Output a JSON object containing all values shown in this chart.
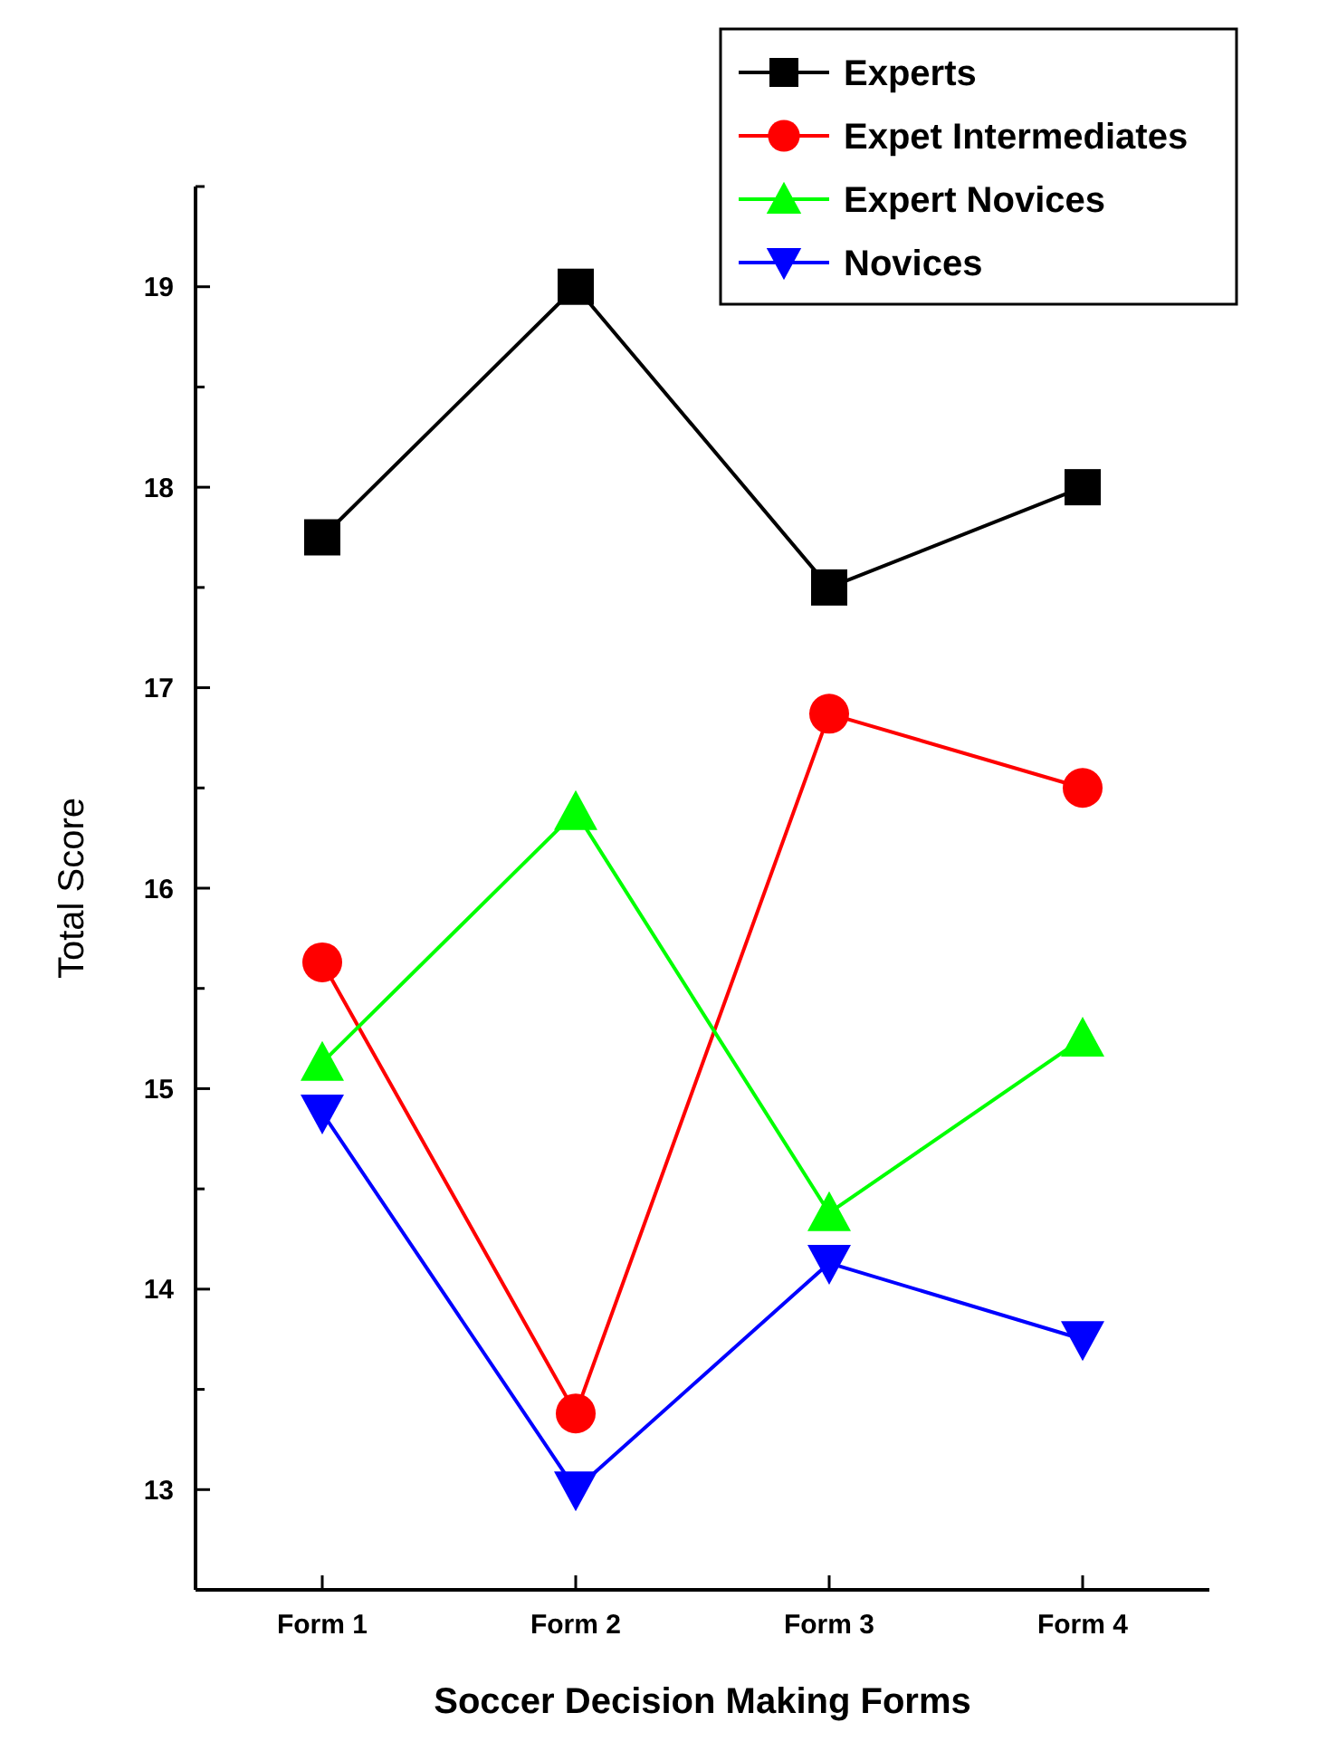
{
  "chart_data": {
    "type": "line",
    "xlabel": "Soccer Decision Making Forms",
    "ylabel": "Total Score",
    "categories": [
      "Form 1",
      "Form 2",
      "Form 3",
      "Form 4"
    ],
    "series": [
      {
        "name": "Experts",
        "color": "#000000",
        "marker": "square",
        "values": [
          17.75,
          19,
          17.5,
          18
        ]
      },
      {
        "name": "Expet Intermediates",
        "color": "#ff0000",
        "marker": "circle",
        "values": [
          15.63,
          13.38,
          16.87,
          16.5
        ]
      },
      {
        "name": "Expert Novices",
        "color": "#00ff00",
        "marker": "triangle",
        "values": [
          15.13,
          16.38,
          14.38,
          15.25
        ]
      },
      {
        "name": "Novices",
        "color": "#0000ff",
        "marker": "triangle-down",
        "values": [
          14.88,
          13,
          14.13,
          13.75
        ]
      }
    ],
    "ylim": [
      12.5,
      19.5
    ],
    "yticks": [
      {
        "value": 12.5,
        "label": null
      },
      13,
      {
        "value": 13.5,
        "label": null
      },
      14,
      {
        "value": 14.5,
        "label": null
      },
      15,
      {
        "value": 15.5,
        "label": null
      },
      16,
      {
        "value": 16.5,
        "label": null
      },
      17,
      {
        "value": 17.5,
        "label": null
      },
      18,
      {
        "value": 18.5,
        "label": null
      },
      19,
      {
        "value": 19.5,
        "label": null
      }
    ],
    "grid": false,
    "legend": "top right"
  }
}
